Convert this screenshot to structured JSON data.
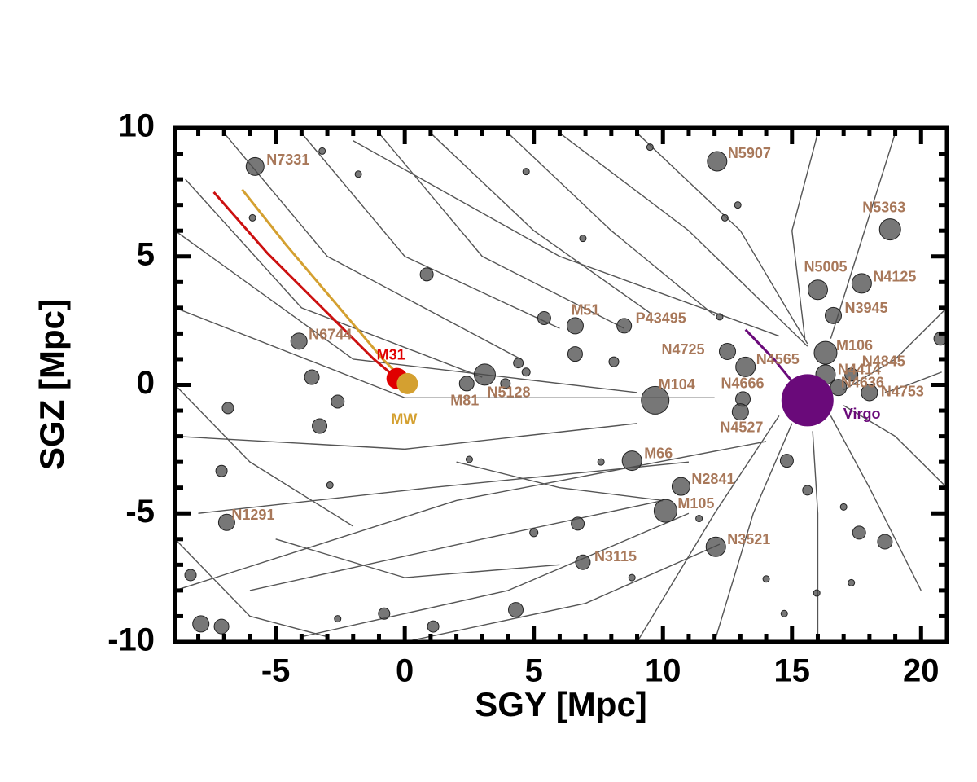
{
  "chart_data": {
    "type": "scatter",
    "x_label": "SGY [Mpc]",
    "y_label": "SGZ [Mpc]",
    "xlim": [
      -8.9,
      21
    ],
    "ylim": [
      -10,
      10
    ],
    "xticks": [
      -5,
      0,
      5,
      10,
      15,
      20
    ],
    "yticks": [
      -10,
      -5,
      0,
      5,
      10
    ],
    "xminorticks": [
      -8,
      -7,
      -6,
      -4,
      -3,
      -2,
      -1,
      1,
      2,
      3,
      4,
      6,
      7,
      8,
      9,
      11,
      12,
      13,
      14,
      16,
      17,
      18,
      19,
      21
    ],
    "yminorticks": [
      -9,
      -8,
      -7,
      -6,
      -4,
      -3,
      -2,
      -1,
      1,
      2,
      3,
      4,
      6,
      7,
      8,
      9
    ],
    "point_color": "#4a4a4a",
    "label_color": "#a8785a",
    "track_color": "#555555",
    "galaxies": {
      "names": [
        "N7331",
        "N6744",
        "M31",
        "MW",
        "M81",
        "N5128",
        "M51",
        "P43495",
        "N4725",
        "M104",
        "N4666",
        "N4527",
        "N4565",
        "M106",
        "N4845",
        "N4414",
        "N4636",
        "N4753",
        "Virgo",
        "N5907",
        "N5363",
        "N5005",
        "N4125",
        "N3945",
        "M66",
        "N2841",
        "M105",
        "N3521",
        "N3115",
        "N1291"
      ],
      "x": [
        -5.8,
        -4.1,
        -0.3,
        0.1,
        2.4,
        3.1,
        6.6,
        8.5,
        12.5,
        9.7,
        13.1,
        13.0,
        13.2,
        16.3,
        17.3,
        16.3,
        16.8,
        18.0,
        15.6,
        12.1,
        18.8,
        16.0,
        17.7,
        16.6,
        8.8,
        10.7,
        10.1,
        12.05,
        6.9,
        -6.9
      ],
      "y": [
        8.5,
        1.7,
        0.25,
        0.05,
        0.05,
        0.4,
        2.3,
        2.3,
        1.3,
        -0.6,
        -0.55,
        -1.05,
        0.7,
        1.25,
        0.4,
        0.4,
        -0.1,
        -0.3,
        -0.6,
        8.7,
        6.05,
        3.7,
        3.95,
        2.7,
        -2.95,
        -3.95,
        -4.9,
        -6.3,
        -6.9,
        -5.35
      ],
      "sizes": [
        11,
        10,
        13,
        13,
        9,
        13,
        10,
        9,
        10,
        17,
        9,
        10,
        12,
        14,
        8,
        12,
        10,
        10,
        32,
        12,
        13,
        12,
        12,
        10,
        12,
        11,
        14,
        12,
        9,
        10
      ],
      "colors": [
        "#4a4a4a",
        "#4a4a4a",
        "#e00000",
        "#d4a030",
        "#4a4a4a",
        "#4a4a4a",
        "#4a4a4a",
        "#4a4a4a",
        "#4a4a4a",
        "#4a4a4a",
        "#4a4a4a",
        "#4a4a4a",
        "#4a4a4a",
        "#4a4a4a",
        "#4a4a4a",
        "#4a4a4a",
        "#4a4a4a",
        "#4a4a4a",
        "#6a0a7a",
        "#4a4a4a",
        "#4a4a4a",
        "#4a4a4a",
        "#4a4a4a",
        "#4a4a4a",
        "#4a4a4a",
        "#4a4a4a",
        "#4a4a4a",
        "#4a4a4a",
        "#4a4a4a",
        "#4a4a4a"
      ]
    },
    "paths": [
      {
        "color": "#cc1010",
        "x": [
          -7.4,
          -5.3,
          -3.1,
          -1.2,
          -0.3
        ],
        "y": [
          7.5,
          5.1,
          2.9,
          1.0,
          0.25
        ]
      },
      {
        "color": "#d4a030",
        "x": [
          -6.3,
          -4.6,
          -2.7,
          -0.85,
          0.1
        ],
        "y": [
          7.6,
          5.45,
          3.2,
          1.0,
          0.05
        ]
      },
      {
        "color": "#6a0a7a",
        "x": [
          13.2,
          14.3,
          15.6
        ],
        "y": [
          2.15,
          1.0,
          -0.6
        ]
      }
    ],
    "field": {
      "x": [
        -5.9,
        -1.8,
        -3.2,
        0.85,
        5.4,
        6.6,
        8.1,
        4.7,
        6.9,
        9.5,
        12.4,
        12.9,
        12.2,
        14.8,
        15.6,
        17.6,
        18.6,
        17.0,
        15.96,
        17.3,
        14.0,
        14.7,
        8.8,
        6.7,
        5.0,
        4.3,
        1.1,
        -0.8,
        -2.6,
        -7.9,
        -7.1,
        -8.3,
        -6.85,
        -3.3,
        -3.6,
        -2.6,
        2.5,
        7.6,
        11.4,
        20.75,
        -2.9,
        -7.1,
        3.9,
        4.4,
        4.7
      ],
      "y": [
        6.5,
        8.2,
        9.1,
        4.3,
        2.6,
        1.2,
        0.9,
        8.3,
        5.7,
        9.25,
        6.5,
        7.0,
        2.65,
        -2.95,
        -4.1,
        -5.75,
        -6.1,
        -4.75,
        -8.1,
        -7.7,
        -7.55,
        -8.9,
        -7.5,
        -5.4,
        -5.75,
        -8.75,
        -9.4,
        -8.9,
        -9.1,
        -9.3,
        -9.4,
        -7.4,
        -0.9,
        -1.6,
        0.3,
        -0.65,
        -2.9,
        -3.0,
        -5.2,
        1.8,
        -3.9,
        -3.35,
        0.05,
        0.85,
        0.5
      ],
      "sizes": [
        4,
        4,
        4,
        8,
        8,
        9,
        6,
        4,
        4,
        4,
        4,
        4,
        4,
        8,
        6,
        8,
        9,
        4,
        4,
        4,
        4,
        4,
        4,
        8,
        5,
        9,
        7,
        7,
        4,
        10,
        9,
        7,
        7,
        9,
        9,
        8,
        4,
        4,
        4,
        8,
        4,
        7,
        6,
        6,
        5
      ]
    },
    "tracks": [
      {
        "x": [
          -8.5,
          -4,
          3
        ],
        "y": [
          8.0,
          3,
          0.3
        ]
      },
      {
        "x": [
          -7,
          -3,
          4.5
        ],
        "y": [
          9.8,
          5,
          1
        ]
      },
      {
        "x": [
          -4,
          0,
          6
        ],
        "y": [
          9.8,
          5,
          2.2
        ]
      },
      {
        "x": [
          -1,
          3,
          8.5
        ],
        "y": [
          9.8,
          5,
          2.2
        ]
      },
      {
        "x": [
          1,
          5,
          9.5
        ],
        "y": [
          9.8,
          6,
          2.8
        ]
      },
      {
        "x": [
          4,
          8,
          12
        ],
        "y": [
          9.8,
          6,
          2.7
        ]
      },
      {
        "x": [
          -2,
          6,
          14.5
        ],
        "y": [
          9.5,
          5,
          1.9
        ]
      },
      {
        "x": [
          6,
          11,
          15.6
        ],
        "y": [
          9.8,
          6,
          1.5
        ]
      },
      {
        "x": [
          9,
          13,
          15.6
        ],
        "y": [
          9.8,
          6,
          1.6
        ]
      },
      {
        "x": [
          -8.9,
          -2,
          9
        ],
        "y": [
          6,
          1,
          -0.3
        ]
      },
      {
        "x": [
          -8.9,
          0,
          12
        ],
        "y": [
          3,
          -0.5,
          -0.5
        ]
      },
      {
        "x": [
          -8.9,
          0,
          9
        ],
        "y": [
          -2,
          -2.5,
          -1.5
        ]
      },
      {
        "x": [
          -8,
          1,
          11
        ],
        "y": [
          -5,
          -4,
          -3
        ]
      },
      {
        "x": [
          -6,
          3,
          10
        ],
        "y": [
          -8,
          -6,
          -4.5
        ]
      },
      {
        "x": [
          -4,
          4,
          11
        ],
        "y": [
          -9.8,
          -8,
          -5
        ]
      },
      {
        "x": [
          0,
          7,
          12.2
        ],
        "y": [
          -10,
          -8.5,
          -6.2
        ]
      },
      {
        "x": [
          -8.9,
          2,
          14
        ],
        "y": [
          -8,
          -4.5,
          -2.2
        ]
      },
      {
        "x": [
          12,
          13.5,
          15
        ],
        "y": [
          -10,
          -5,
          -1.5
        ]
      },
      {
        "x": [
          9,
          12,
          14.5
        ],
        "y": [
          -10,
          -5,
          -1.2
        ]
      },
      {
        "x": [
          16,
          16,
          15.8
        ],
        "y": [
          -10,
          -5,
          -1.8
        ]
      },
      {
        "x": [
          20,
          18,
          16.5
        ],
        "y": [
          -8,
          -4,
          -1.2
        ]
      },
      {
        "x": [
          21,
          19,
          17
        ],
        "y": [
          -4,
          -2,
          -0.8
        ]
      },
      {
        "x": [
          21,
          19,
          17
        ],
        "y": [
          3,
          1,
          -0.2
        ]
      },
      {
        "x": [
          19,
          17.5,
          16.5
        ],
        "y": [
          9.8,
          5,
          1.8
        ]
      },
      {
        "x": [
          16,
          15,
          15.5
        ],
        "y": [
          9.8,
          6,
          1.8
        ]
      },
      {
        "x": [
          20.8,
          19.5,
          18.6
        ],
        "y": [
          0.5,
          0,
          -0.3
        ]
      },
      {
        "x": [
          -8.9,
          -6,
          -2
        ],
        "y": [
          0,
          -3,
          -5.5
        ]
      },
      {
        "x": [
          -8.9,
          -6,
          -3
        ],
        "y": [
          -6,
          -9,
          -9.8
        ]
      },
      {
        "x": [
          2,
          6,
          10
        ],
        "y": [
          -3,
          -4,
          -4.5
        ]
      },
      {
        "x": [
          -5,
          0,
          6
        ],
        "y": [
          -6,
          -7.5,
          -7
        ]
      }
    ]
  }
}
